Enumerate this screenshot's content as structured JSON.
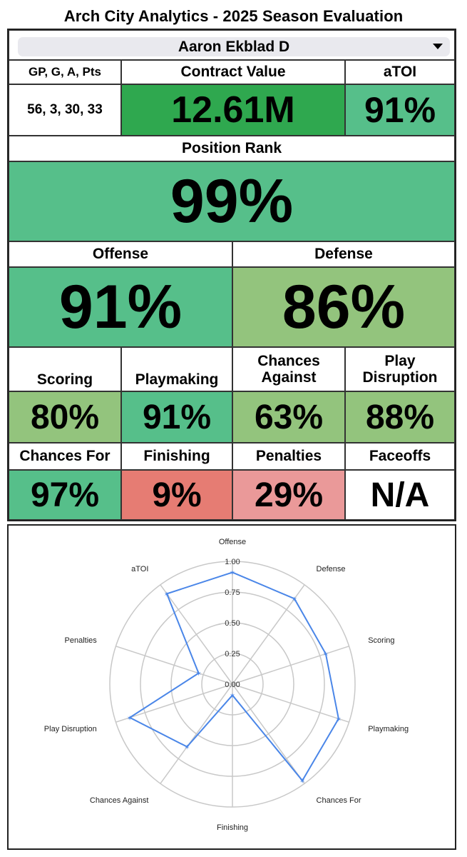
{
  "header": {
    "title": "Arch City Analytics - 2025 Season Evaluation"
  },
  "player_select": {
    "value": "Aaron Ekblad D",
    "icon": "chevron-down-icon"
  },
  "stats": {
    "gp_label": "GP, G, A, Pts",
    "gp_value": "56, 3, 30, 33",
    "contract_label": "Contract Value",
    "contract_value": "12.61M",
    "atoi_label": "aTOI",
    "atoi_value": "91%",
    "position_rank_label": "Position Rank",
    "position_rank_value": "99%",
    "offense_label": "Offense",
    "offense_value": "91%",
    "defense_label": "Defense",
    "defense_value": "86%",
    "scoring_label": "Scoring",
    "scoring_value": "80%",
    "playmaking_label": "Playmaking",
    "playmaking_value": "91%",
    "chances_against_label": "Chances Against",
    "chances_against_value": "63%",
    "play_disruption_label": "Play Disruption",
    "play_disruption_value": "88%",
    "chances_for_label": "Chances For",
    "chances_for_value": "97%",
    "finishing_label": "Finishing",
    "finishing_value": "9%",
    "penalties_label": "Penalties",
    "penalties_value": "29%",
    "faceoffs_label": "Faceoffs",
    "faceoffs_value": "N/A"
  },
  "colors": {
    "dark_green": "#2fa84f",
    "mid_green": "#56bf8a",
    "light_green": "#93c47d",
    "red": "#e67c73",
    "pink": "#ea9999",
    "series_line": "#4a86e8"
  },
  "chart_data": {
    "type": "radar",
    "categories": [
      "Offense",
      "Defense",
      "Scoring",
      "Playmaking",
      "Chances For",
      "Finishing",
      "Chances Against",
      "Play Disruption",
      "Penalties",
      "aTOI"
    ],
    "values": [
      0.91,
      0.86,
      0.8,
      0.91,
      0.97,
      0.09,
      0.63,
      0.88,
      0.29,
      0.91
    ],
    "radial_ticks": [
      "0.00",
      "0.25",
      "0.50",
      "0.75",
      "1.00"
    ],
    "rlim": [
      0,
      1
    ],
    "grid": true
  }
}
